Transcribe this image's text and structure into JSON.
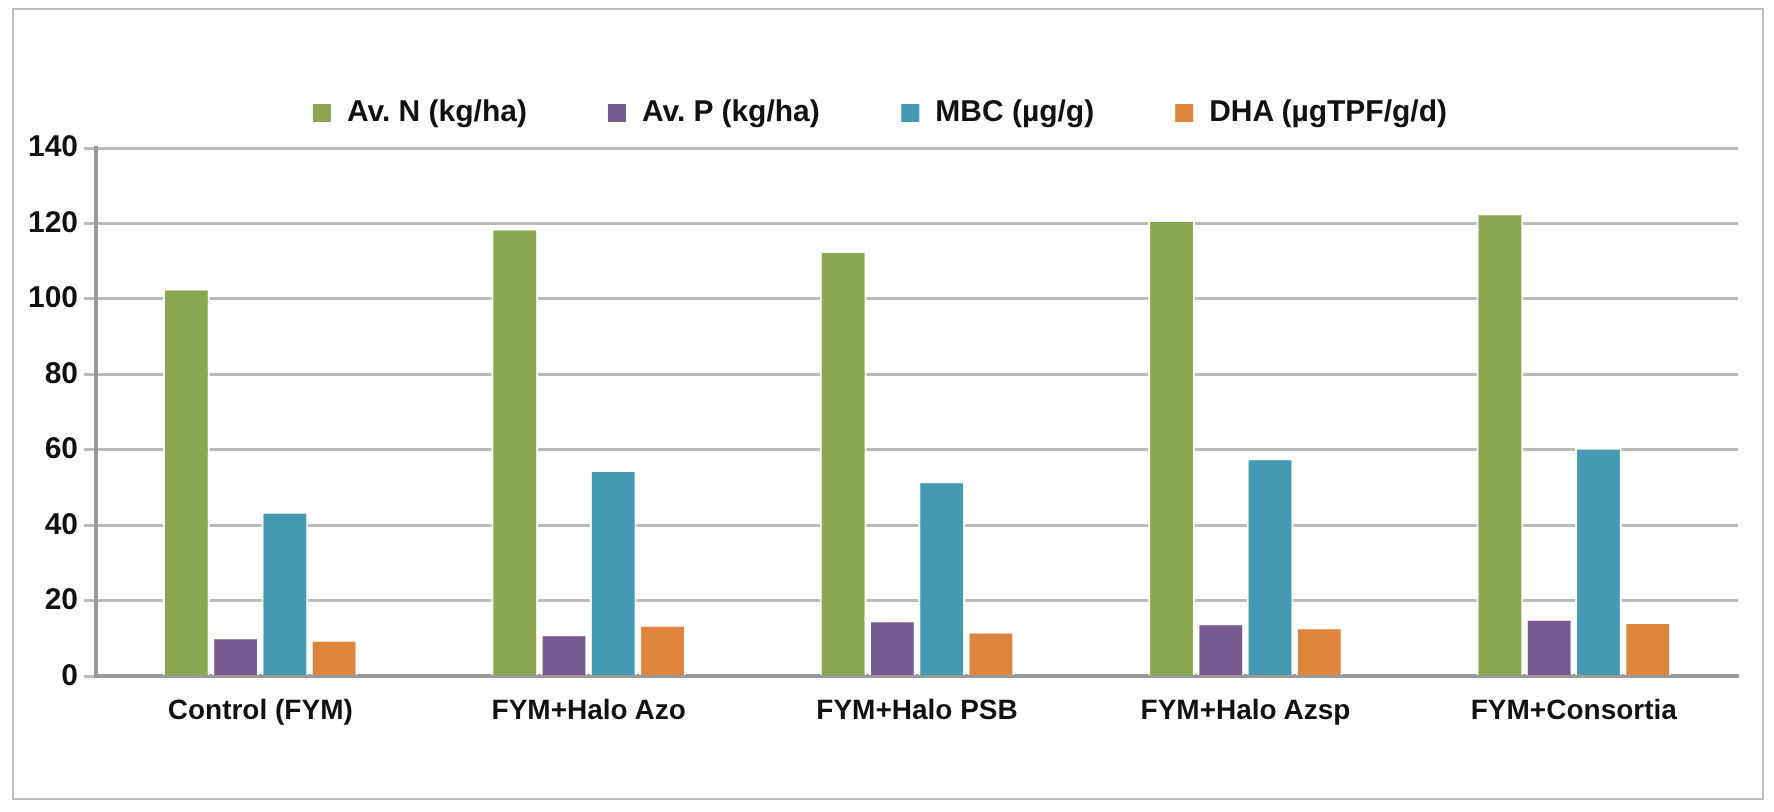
{
  "chart_data": {
    "type": "bar",
    "categories": [
      "Control (FYM)",
      "FYM+Halo Azo",
      "FYM+Halo PSB",
      "FYM+Halo Azsp",
      "FYM+Consortia"
    ],
    "series": [
      {
        "name": "Av. N (kg/ha)",
        "color": "#8aa64f",
        "values": [
          102.8,
          118.7,
          112.7,
          120.9,
          122.7
        ]
      },
      {
        "name": "Av. P (kg/ha)",
        "color": "#775a90",
        "values": [
          10.4,
          11.2,
          14.9,
          14.1,
          15.3
        ]
      },
      {
        "name": "MBC (µg/g)",
        "color": "#4599b2",
        "values": [
          43.6,
          54.7,
          51.7,
          57.8,
          60.6
        ]
      },
      {
        "name": "DHA (µgTPF/g/d)",
        "color": "#de853d",
        "values": [
          9.7,
          13.7,
          11.9,
          13.0,
          14.4
        ]
      }
    ],
    "ylim": [
      0,
      140
    ],
    "yticks": [
      0,
      20,
      40,
      60,
      80,
      100,
      120,
      140
    ],
    "grid": "y",
    "legend": "top"
  }
}
